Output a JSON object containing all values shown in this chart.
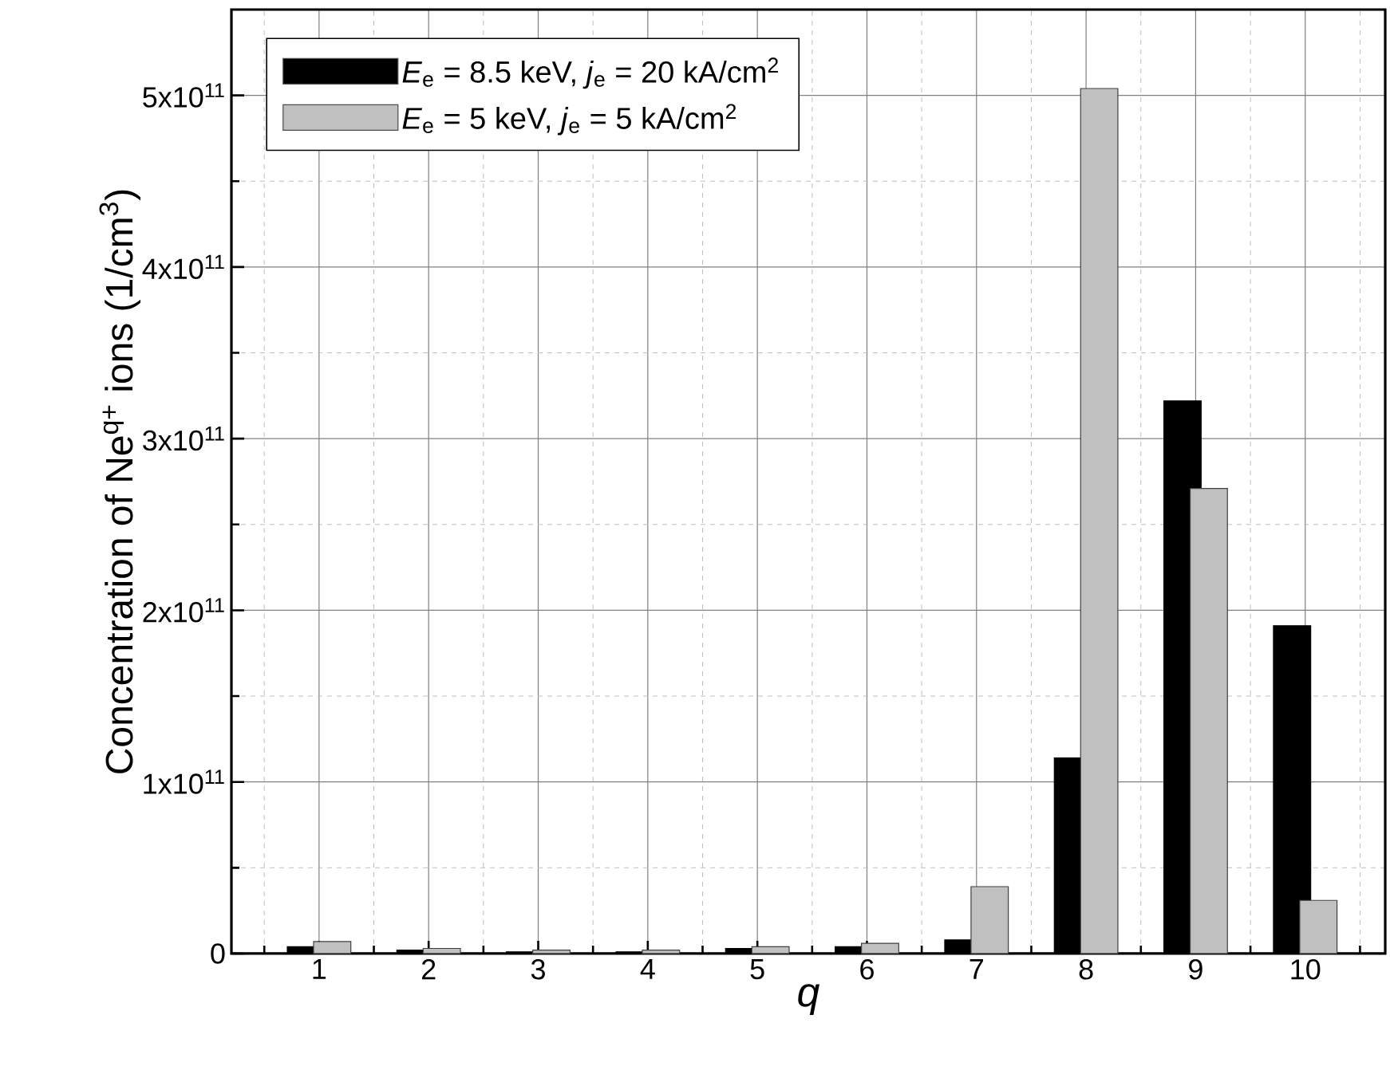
{
  "chart_data": {
    "type": "bar",
    "xlabel": "q",
    "ylabel": "Concentration of Ne$^{q+}$ ions (1/cm$^{3}$)",
    "categories": [
      "1",
      "2",
      "3",
      "4",
      "5",
      "6",
      "7",
      "8",
      "9",
      "10"
    ],
    "series": [
      {
        "name": "*E*$_{e}$ =  8.5 keV, *j*$_{e}$ = 20 kA/cm$^{2}$",
        "color": "#000000",
        "values": [
          4000000000.0,
          2000000000.0,
          1000000000.0,
          1000000000.0,
          3000000000.0,
          4000000000.0,
          8000000000.0,
          114000000000.0,
          322000000000.0,
          191000000000.0
        ]
      },
      {
        "name": "*E*$_{e}$ =  5 keV,   *j*$_{e}$ = 5  kA/cm$^{2}$",
        "color": "#c0c0c0",
        "values": [
          7000000000.0,
          3000000000.0,
          2000000000.0,
          2000000000.0,
          4000000000.0,
          6000000000.0,
          39000000000.0,
          504000000000.0,
          271000000000.0,
          31000000000.0
        ]
      }
    ],
    "ylim": [
      0,
      550000000000.0
    ],
    "yticks": [
      0,
      {
        "value": 100000000000.0,
        "label": "1x10$^{11}$"
      },
      {
        "value": 200000000000.0,
        "label": "2x10$^{11}$"
      },
      {
        "value": 300000000000.0,
        "label": "3x10$^{11}$"
      },
      {
        "value": 400000000000.0,
        "label": "4x10$^{11}$"
      },
      {
        "value": 500000000000.0,
        "label": "5x10$^{11}$"
      }
    ],
    "grid": true,
    "legend": "top left"
  }
}
